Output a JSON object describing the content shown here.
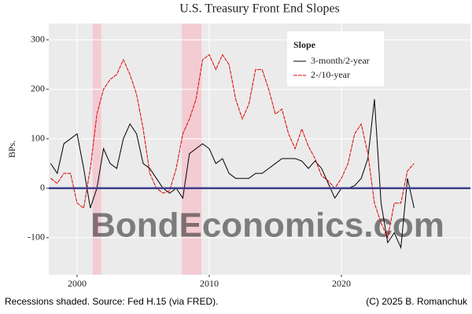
{
  "chart_data": {
    "type": "line",
    "title": "U.S. Treasury Front End Slopes",
    "y_label": "BPs.",
    "watermark": "BondEconomics.com",
    "caption_left": "Recessions shaded. Source: Fed H.15 (via FRED).",
    "caption_right": "(C) 2025 B. Romanchuk",
    "legend_title": "Slope",
    "legend_position": "top-right",
    "grid": true,
    "xlim": [
      1997.86,
      2029.76
    ],
    "xticks": [
      2000,
      2010,
      2020
    ],
    "ylim": [
      -175,
      333
    ],
    "yticks": [
      -100,
      0,
      100,
      200,
      300
    ],
    "hline": 0,
    "hline_color": "#3f3f8f",
    "recession_color": "#f5c6cf",
    "recessions": [
      [
        2001.17,
        2001.83
      ],
      [
        2007.92,
        2009.42
      ]
    ],
    "x": [
      1998,
      1998.5,
      1999,
      1999.5,
      2000,
      2000.5,
      2001,
      2001.5,
      2002,
      2002.5,
      2003,
      2003.5,
      2004,
      2004.5,
      2005,
      2005.5,
      2006,
      2006.5,
      2007,
      2007.5,
      2008,
      2008.5,
      2009,
      2009.5,
      2010,
      2010.5,
      2011,
      2011.5,
      2012,
      2012.5,
      2013,
      2013.5,
      2014,
      2014.5,
      2015,
      2015.5,
      2016,
      2016.5,
      2017,
      2017.5,
      2018,
      2018.5,
      2019,
      2019.5,
      2020,
      2020.5,
      2021,
      2021.5,
      2022,
      2022.5,
      2023,
      2023.5,
      2024,
      2024.5,
      2025,
      2025.5
    ],
    "series": [
      {
        "name": "3-month/2-year",
        "color": "#000000",
        "dashed": false,
        "values": [
          50,
          30,
          90,
          100,
          110,
          40,
          -40,
          0,
          80,
          50,
          40,
          100,
          130,
          110,
          50,
          40,
          20,
          0,
          -10,
          0,
          -20,
          70,
          80,
          90,
          80,
          50,
          60,
          30,
          20,
          20,
          20,
          30,
          30,
          40,
          50,
          60,
          60,
          60,
          55,
          40,
          55,
          40,
          10,
          -20,
          0,
          0,
          5,
          20,
          60,
          180,
          -30,
          -110,
          -90,
          -120,
          20,
          -40
        ]
      },
      {
        "name": "2-/10-year",
        "color": "#e00000",
        "dashed": true,
        "values": [
          20,
          10,
          30,
          30,
          -30,
          -40,
          40,
          150,
          200,
          220,
          230,
          260,
          230,
          190,
          120,
          30,
          0,
          -10,
          -5,
          40,
          110,
          140,
          180,
          260,
          270,
          240,
          270,
          250,
          180,
          140,
          170,
          240,
          240,
          200,
          150,
          160,
          110,
          80,
          120,
          85,
          60,
          25,
          15,
          0,
          20,
          50,
          110,
          130,
          70,
          -30,
          -70,
          -100,
          -30,
          -30,
          35,
          50
        ]
      }
    ]
  }
}
